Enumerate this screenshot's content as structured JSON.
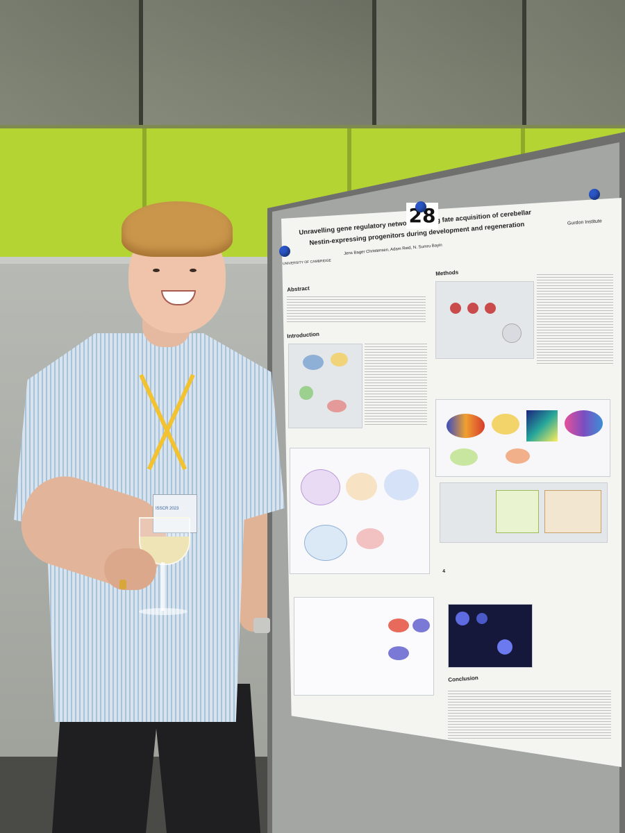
{
  "board": {
    "number": "28"
  },
  "poster": {
    "title_line1": "Unravelling gene regulatory networks driving fate acquisition of cerebellar",
    "title_line2": "Nestin-expressing progenitors during development and regeneration",
    "authors": "Jens Bager Christensen, Adam Reid, N. Sumru Bayin",
    "institution_left": "UNIVERSITY OF CAMBRIDGE",
    "institution_right": "Gurdon Institute",
    "sections": {
      "abstract": "Abstract",
      "introduction": "Introduction",
      "methods": "Methods",
      "conclusion": "Conclusion"
    }
  },
  "badge": {
    "text": "ISSCR 2023"
  },
  "colors": {
    "wall_green": "#b4d433",
    "lanyard": "#f2c230",
    "pin_blue": "#2a56c6"
  }
}
